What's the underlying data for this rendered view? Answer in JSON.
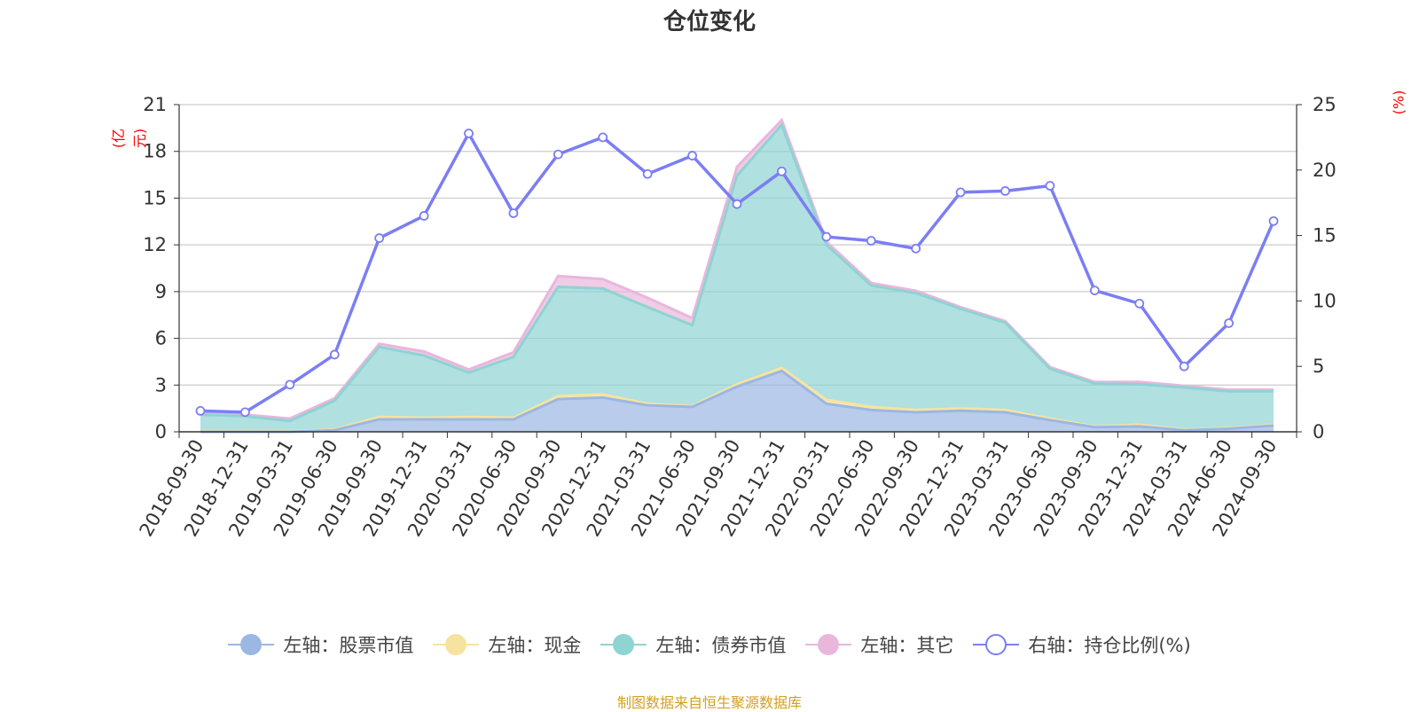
{
  "title": "仓位变化",
  "source": "制图数据来自恒生聚源数据库",
  "left_unit": "(亿元)",
  "right_unit": "(%)",
  "colors": {
    "stock": "#9bb7e3",
    "cash": "#f7e3a0",
    "bond": "#8fd3d3",
    "other": "#e9b6dc",
    "ratio": "#7b7ef3",
    "grid": "#cccccc",
    "axis": "#333333"
  },
  "legend": [
    {
      "key": "stock",
      "label": "左轴：股票市值",
      "icon": "filled-circle-icon"
    },
    {
      "key": "cash",
      "label": "左轴：现金",
      "icon": "filled-circle-icon"
    },
    {
      "key": "bond",
      "label": "左轴：债券市值",
      "icon": "filled-circle-icon"
    },
    {
      "key": "other",
      "label": "左轴：其它",
      "icon": "filled-circle-icon"
    },
    {
      "key": "ratio",
      "label": "右轴：持仓比例(%)",
      "icon": "hollow-circle-icon"
    }
  ],
  "chart_data": {
    "type": "area",
    "title": "仓位变化",
    "categories": [
      "2018-09-30",
      "2018-12-31",
      "2019-03-31",
      "2019-06-30",
      "2019-09-30",
      "2019-12-31",
      "2020-03-31",
      "2020-06-30",
      "2020-09-30",
      "2020-12-31",
      "2021-03-31",
      "2021-06-30",
      "2021-09-30",
      "2021-12-31",
      "2022-03-31",
      "2022-06-30",
      "2022-09-30",
      "2022-12-31",
      "2023-03-31",
      "2023-06-30",
      "2023-09-30",
      "2023-12-31",
      "2024-03-31",
      "2024-06-30",
      "2024-09-30"
    ],
    "left_axis": {
      "label": "(亿元)",
      "ylim": [
        0,
        21
      ],
      "ticks": [
        0,
        3,
        6,
        9,
        12,
        15,
        18,
        21
      ]
    },
    "right_axis": {
      "label": "(%)",
      "ylim": [
        0,
        25
      ],
      "ticks": [
        0,
        5,
        10,
        15,
        20,
        25
      ]
    },
    "stacked": true,
    "series": [
      {
        "name": "左轴：股票市值",
        "key": "stock",
        "axis": "left",
        "values": [
          0.0,
          0.0,
          0.0,
          0.1,
          0.8,
          0.8,
          0.8,
          0.8,
          2.1,
          2.2,
          1.7,
          1.6,
          2.9,
          3.9,
          1.8,
          1.4,
          1.25,
          1.35,
          1.25,
          0.75,
          0.3,
          0.35,
          0.1,
          0.2,
          0.4
        ]
      },
      {
        "name": "左轴：现金",
        "key": "cash",
        "axis": "left",
        "values": [
          0.05,
          0.05,
          0.05,
          0.05,
          0.15,
          0.1,
          0.15,
          0.1,
          0.2,
          0.2,
          0.1,
          0.05,
          0.15,
          0.2,
          0.25,
          0.2,
          0.15,
          0.15,
          0.15,
          0.1,
          0.05,
          0.1,
          0.05,
          0.05,
          0.05
        ]
      },
      {
        "name": "左轴：债券市值",
        "key": "bond",
        "axis": "left",
        "values": [
          1.05,
          0.95,
          0.65,
          1.85,
          4.5,
          4.0,
          2.85,
          3.9,
          7.0,
          6.8,
          6.2,
          5.2,
          13.4,
          15.6,
          9.95,
          7.8,
          7.5,
          6.4,
          5.6,
          3.2,
          2.75,
          2.6,
          2.7,
          2.35,
          2.15
        ]
      },
      {
        "name": "左轴：其它",
        "key": "other",
        "axis": "left",
        "values": [
          0.1,
          0.1,
          0.15,
          0.15,
          0.2,
          0.25,
          0.2,
          0.3,
          0.7,
          0.6,
          0.6,
          0.45,
          0.55,
          0.3,
          0.2,
          0.15,
          0.15,
          0.1,
          0.1,
          0.1,
          0.1,
          0.15,
          0.1,
          0.1,
          0.1
        ]
      },
      {
        "name": "右轴：持仓比例(%)",
        "key": "ratio",
        "axis": "right",
        "type": "line",
        "values": [
          1.6,
          1.5,
          3.6,
          5.9,
          14.8,
          16.5,
          22.8,
          16.7,
          21.2,
          22.5,
          19.7,
          21.1,
          17.4,
          19.9,
          14.9,
          14.6,
          14.0,
          18.3,
          18.4,
          18.8,
          10.8,
          9.8,
          5.0,
          8.3,
          16.1
        ]
      }
    ]
  }
}
